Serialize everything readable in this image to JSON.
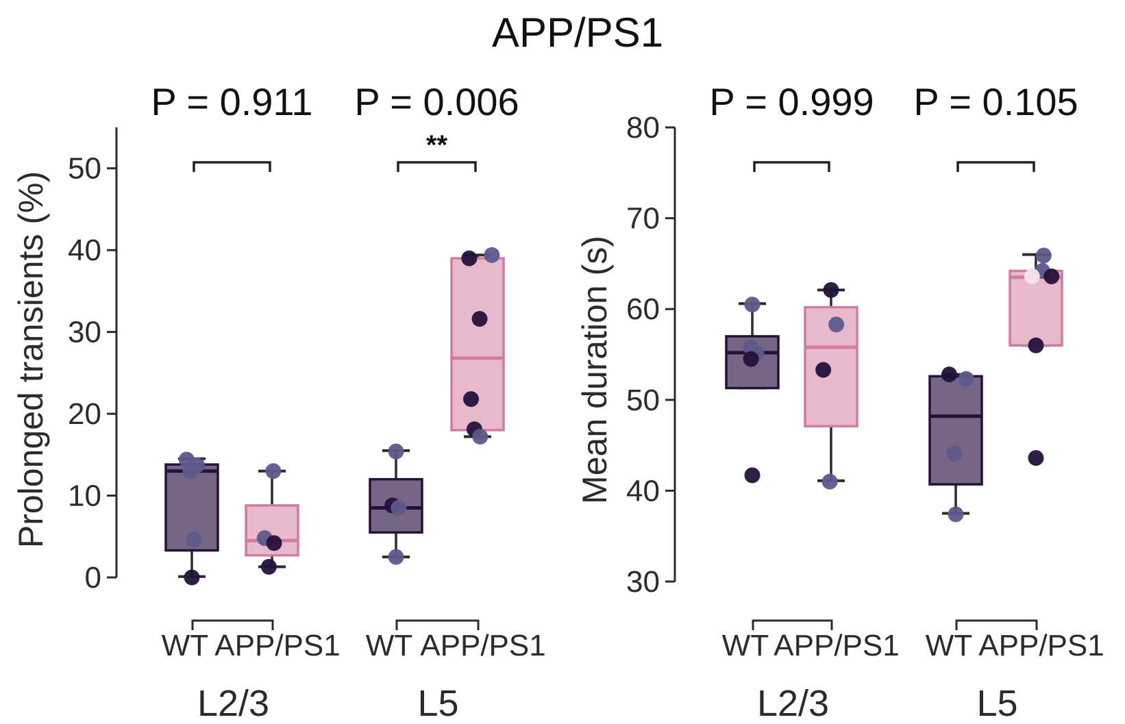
{
  "figure_title": "APP/PS1",
  "colors": {
    "wt_box_fill": "#776584",
    "wt_box_edge": "#24123a",
    "tg_box_fill": "#e8b9cc",
    "tg_box_edge": "#d17ba0",
    "whisker": "#2b2b2b",
    "point_dark": "#24123a",
    "point_mid": "#5d5a8c",
    "point_light": "#f3e4ec"
  },
  "chart_data": [
    {
      "type": "box",
      "ylabel": "Prolonged transients (%)",
      "ylim": [
        0,
        55
      ],
      "yticks": [
        0,
        10,
        20,
        30,
        40,
        50
      ],
      "groups": [
        {
          "layer": "L2/3",
          "pvalue": "P = 0.911",
          "significance": "",
          "boxes": [
            {
              "category": "WT",
              "q1": 3.3,
              "median": 13.0,
              "q3": 13.8,
              "whisker_low": 0.1,
              "whisker_high": 14.5,
              "points": [
                {
                  "y": 14.4,
                  "shade": "mid",
                  "dx": -0.2
                },
                {
                  "y": 13.0,
                  "shade": "mid",
                  "dx": -0.05
                },
                {
                  "y": 13.7,
                  "shade": "mid",
                  "dx": 0.2
                },
                {
                  "y": 4.6,
                  "shade": "mid",
                  "dx": 0.08
                },
                {
                  "y": 0.0,
                  "shade": "dark",
                  "dx": 0
                }
              ]
            },
            {
              "category": "APP/PS1",
              "q1": 2.7,
              "median": 4.5,
              "q3": 8.8,
              "whisker_low": 1.3,
              "whisker_high": 13.0,
              "points": [
                {
                  "y": 13.0,
                  "shade": "mid",
                  "dx": 0.05
                },
                {
                  "y": 4.8,
                  "shade": "mid",
                  "dx": -0.28
                },
                {
                  "y": 4.2,
                  "shade": "dark",
                  "dx": 0.08
                },
                {
                  "y": 1.3,
                  "shade": "dark",
                  "dx": -0.12
                }
              ]
            }
          ]
        },
        {
          "layer": "L5",
          "pvalue": "P = 0.006",
          "significance": "**",
          "boxes": [
            {
              "category": "WT",
              "q1": 5.5,
              "median": 8.5,
              "q3": 12.0,
              "whisker_low": 2.5,
              "whisker_high": 15.5,
              "points": [
                {
                  "y": 15.4,
                  "shade": "mid",
                  "dx": 0
                },
                {
                  "y": 8.8,
                  "shade": "dark",
                  "dx": -0.14
                },
                {
                  "y": 8.5,
                  "shade": "mid",
                  "dx": 0.1
                },
                {
                  "y": 2.5,
                  "shade": "mid",
                  "dx": 0
                }
              ]
            },
            {
              "category": "APP/PS1",
              "q1": 18.0,
              "median": 26.8,
              "q3": 39.0,
              "whisker_low": 17.2,
              "whisker_high": 39.4,
              "points": [
                {
                  "y": 39.0,
                  "shade": "dark",
                  "dx": -0.32
                },
                {
                  "y": 39.4,
                  "shade": "mid",
                  "dx": 0.55
                },
                {
                  "y": 31.6,
                  "shade": "dark",
                  "dx": 0.08
                },
                {
                  "y": 21.8,
                  "shade": "dark",
                  "dx": -0.25
                },
                {
                  "y": 18.1,
                  "shade": "dark",
                  "dx": -0.12
                },
                {
                  "y": 17.2,
                  "shade": "mid",
                  "dx": 0.1
                }
              ]
            }
          ]
        }
      ]
    },
    {
      "type": "box",
      "ylabel": "Mean duration (s)",
      "ylim": [
        30,
        80
      ],
      "yticks": [
        30,
        40,
        50,
        60,
        70,
        80
      ],
      "groups": [
        {
          "layer": "L2/3",
          "pvalue": "P = 0.999",
          "significance": "",
          "boxes": [
            {
              "category": "WT",
              "q1": 51.3,
              "median": 55.2,
              "q3": 57.0,
              "whisker_low": 51.3,
              "whisker_high": 60.6,
              "points": [
                {
                  "y": 60.5,
                  "shade": "mid",
                  "dx": 0
                },
                {
                  "y": 55.8,
                  "shade": "mid",
                  "dx": -0.05
                },
                {
                  "y": 55.1,
                  "shade": "mid",
                  "dx": 0.15
                },
                {
                  "y": 54.5,
                  "shade": "dark",
                  "dx": -0.05
                },
                {
                  "y": 41.7,
                  "shade": "dark",
                  "dx": 0
                }
              ]
            },
            {
              "category": "APP/PS1",
              "q1": 47.1,
              "median": 55.8,
              "q3": 60.2,
              "whisker_low": 41.1,
              "whisker_high": 62.1,
              "points": [
                {
                  "y": 62.1,
                  "shade": "dark",
                  "dx": 0
                },
                {
                  "y": 58.3,
                  "shade": "mid",
                  "dx": 0.2
                },
                {
                  "y": 53.3,
                  "shade": "dark",
                  "dx": -0.3
                },
                {
                  "y": 41.0,
                  "shade": "mid",
                  "dx": -0.05
                }
              ]
            }
          ]
        },
        {
          "layer": "L5",
          "pvalue": "P = 0.105",
          "significance": "",
          "boxes": [
            {
              "category": "WT",
              "q1": 40.7,
              "median": 48.2,
              "q3": 52.6,
              "whisker_low": 37.5,
              "whisker_high": 52.8,
              "points": [
                {
                  "y": 52.8,
                  "shade": "dark",
                  "dx": -0.25
                },
                {
                  "y": 52.3,
                  "shade": "mid",
                  "dx": 0.4
                },
                {
                  "y": 44.1,
                  "shade": "mid",
                  "dx": -0.05
                },
                {
                  "y": 37.4,
                  "shade": "mid",
                  "dx": 0
                }
              ]
            },
            {
              "category": "APP/PS1",
              "q1": 56.0,
              "median": 63.5,
              "q3": 64.2,
              "whisker_low": 56.0,
              "whisker_high": 66.0,
              "points": [
                {
                  "y": 65.9,
                  "shade": "mid",
                  "dx": 0.3
                },
                {
                  "y": 64.2,
                  "shade": "mid",
                  "dx": 0.25
                },
                {
                  "y": 63.6,
                  "shade": "light",
                  "dx": -0.15
                },
                {
                  "y": 63.6,
                  "shade": "dark",
                  "dx": 0.6
                },
                {
                  "y": 56.0,
                  "shade": "dark",
                  "dx": 0
                },
                {
                  "y": 43.6,
                  "shade": "dark",
                  "dx": 0
                }
              ]
            }
          ]
        }
      ]
    }
  ]
}
